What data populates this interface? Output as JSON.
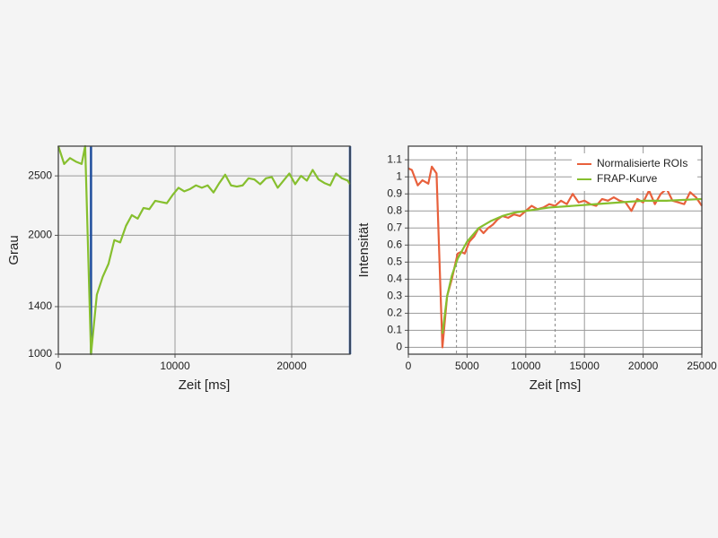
{
  "chart_data": [
    {
      "type": "line",
      "ylabel": "Grau",
      "xlabel": "Zeit [ms]",
      "xlim": [
        0,
        25000
      ],
      "ylim": [
        1000,
        2750
      ],
      "xticks": [
        0,
        10000,
        20000
      ],
      "yticks": [
        1000,
        1400,
        2000,
        2500
      ],
      "grid": true,
      "markers": {
        "values": [
          2800,
          25000
        ],
        "color": "#1f4e9c",
        "dashed": false
      },
      "series": [
        {
          "color": "#86bf2e",
          "x": [
            0,
            500,
            1000,
            1500,
            2000,
            2300,
            2800,
            3300,
            3800,
            4300,
            4800,
            5300,
            5800,
            6300,
            6800,
            7300,
            7800,
            8300,
            8800,
            9300,
            9800,
            10300,
            10800,
            11300,
            11800,
            12300,
            12800,
            13300,
            13800,
            14300,
            14800,
            15300,
            15800,
            16300,
            16800,
            17300,
            17800,
            18300,
            18800,
            19300,
            19800,
            20300,
            20800,
            21300,
            21800,
            22300,
            22800,
            23300,
            23800,
            24300,
            24800,
            25000
          ],
          "values": [
            2750,
            2600,
            2650,
            2620,
            2600,
            2750,
            1000,
            1500,
            1650,
            1760,
            1960,
            1940,
            2080,
            2170,
            2140,
            2230,
            2220,
            2290,
            2280,
            2270,
            2340,
            2400,
            2370,
            2390,
            2420,
            2400,
            2420,
            2360,
            2440,
            2510,
            2420,
            2410,
            2420,
            2480,
            2470,
            2430,
            2480,
            2490,
            2400,
            2460,
            2520,
            2430,
            2500,
            2460,
            2550,
            2470,
            2440,
            2420,
            2520,
            2480,
            2460,
            2430
          ]
        }
      ]
    },
    {
      "type": "line",
      "ylabel": "Intensität",
      "xlabel": "Zeit [ms]",
      "xlim": [
        0,
        25000
      ],
      "ylim": [
        -0.04,
        1.18
      ],
      "xticks": [
        0,
        5000,
        10000,
        15000,
        20000,
        25000
      ],
      "yticks": [
        0,
        0.1,
        0.2,
        0.3,
        0.4,
        0.5,
        0.6,
        0.7,
        0.8,
        0.9,
        1,
        1.1
      ],
      "grid": true,
      "legend": "upper right",
      "markers": {
        "values": [
          4100,
          12500
        ],
        "color": "#888888",
        "dashed": true
      },
      "series": [
        {
          "name": "Normalisierte ROIs",
          "color": "#e8603c",
          "x": [
            0,
            300,
            800,
            1200,
            1700,
            2000,
            2400,
            2900,
            3300,
            3700,
            4200,
            4500,
            4800,
            5200,
            5600,
            6000,
            6400,
            6800,
            7200,
            7600,
            8000,
            8500,
            9000,
            9500,
            10000,
            10500,
            11000,
            11500,
            12000,
            12500,
            13000,
            13500,
            14000,
            14500,
            15000,
            15500,
            16000,
            16500,
            17000,
            17500,
            18000,
            18500,
            19000,
            19500,
            20000,
            20500,
            21000,
            21500,
            22000,
            22500,
            23000,
            23500,
            24000,
            24500,
            25000
          ],
          "values": [
            1.05,
            1.04,
            0.95,
            0.98,
            0.96,
            1.06,
            1.02,
            0.0,
            0.3,
            0.4,
            0.55,
            0.56,
            0.55,
            0.62,
            0.65,
            0.7,
            0.67,
            0.7,
            0.72,
            0.75,
            0.77,
            0.76,
            0.78,
            0.77,
            0.8,
            0.83,
            0.81,
            0.82,
            0.84,
            0.83,
            0.86,
            0.84,
            0.9,
            0.85,
            0.86,
            0.84,
            0.83,
            0.87,
            0.86,
            0.88,
            0.86,
            0.85,
            0.8,
            0.87,
            0.85,
            0.92,
            0.84,
            0.9,
            0.93,
            0.86,
            0.85,
            0.84,
            0.91,
            0.88,
            0.83
          ]
        },
        {
          "name": "FRAP-Kurve",
          "color": "#86bf2e",
          "x": [
            2900,
            3300,
            3700,
            4200,
            5000,
            6000,
            7000,
            8000,
            9000,
            10000,
            12000,
            14000,
            16000,
            18000,
            20000,
            22000,
            25000
          ],
          "values": [
            0.08,
            0.3,
            0.42,
            0.52,
            0.62,
            0.7,
            0.74,
            0.77,
            0.79,
            0.8,
            0.82,
            0.83,
            0.84,
            0.85,
            0.86,
            0.86,
            0.87
          ]
        }
      ]
    }
  ]
}
